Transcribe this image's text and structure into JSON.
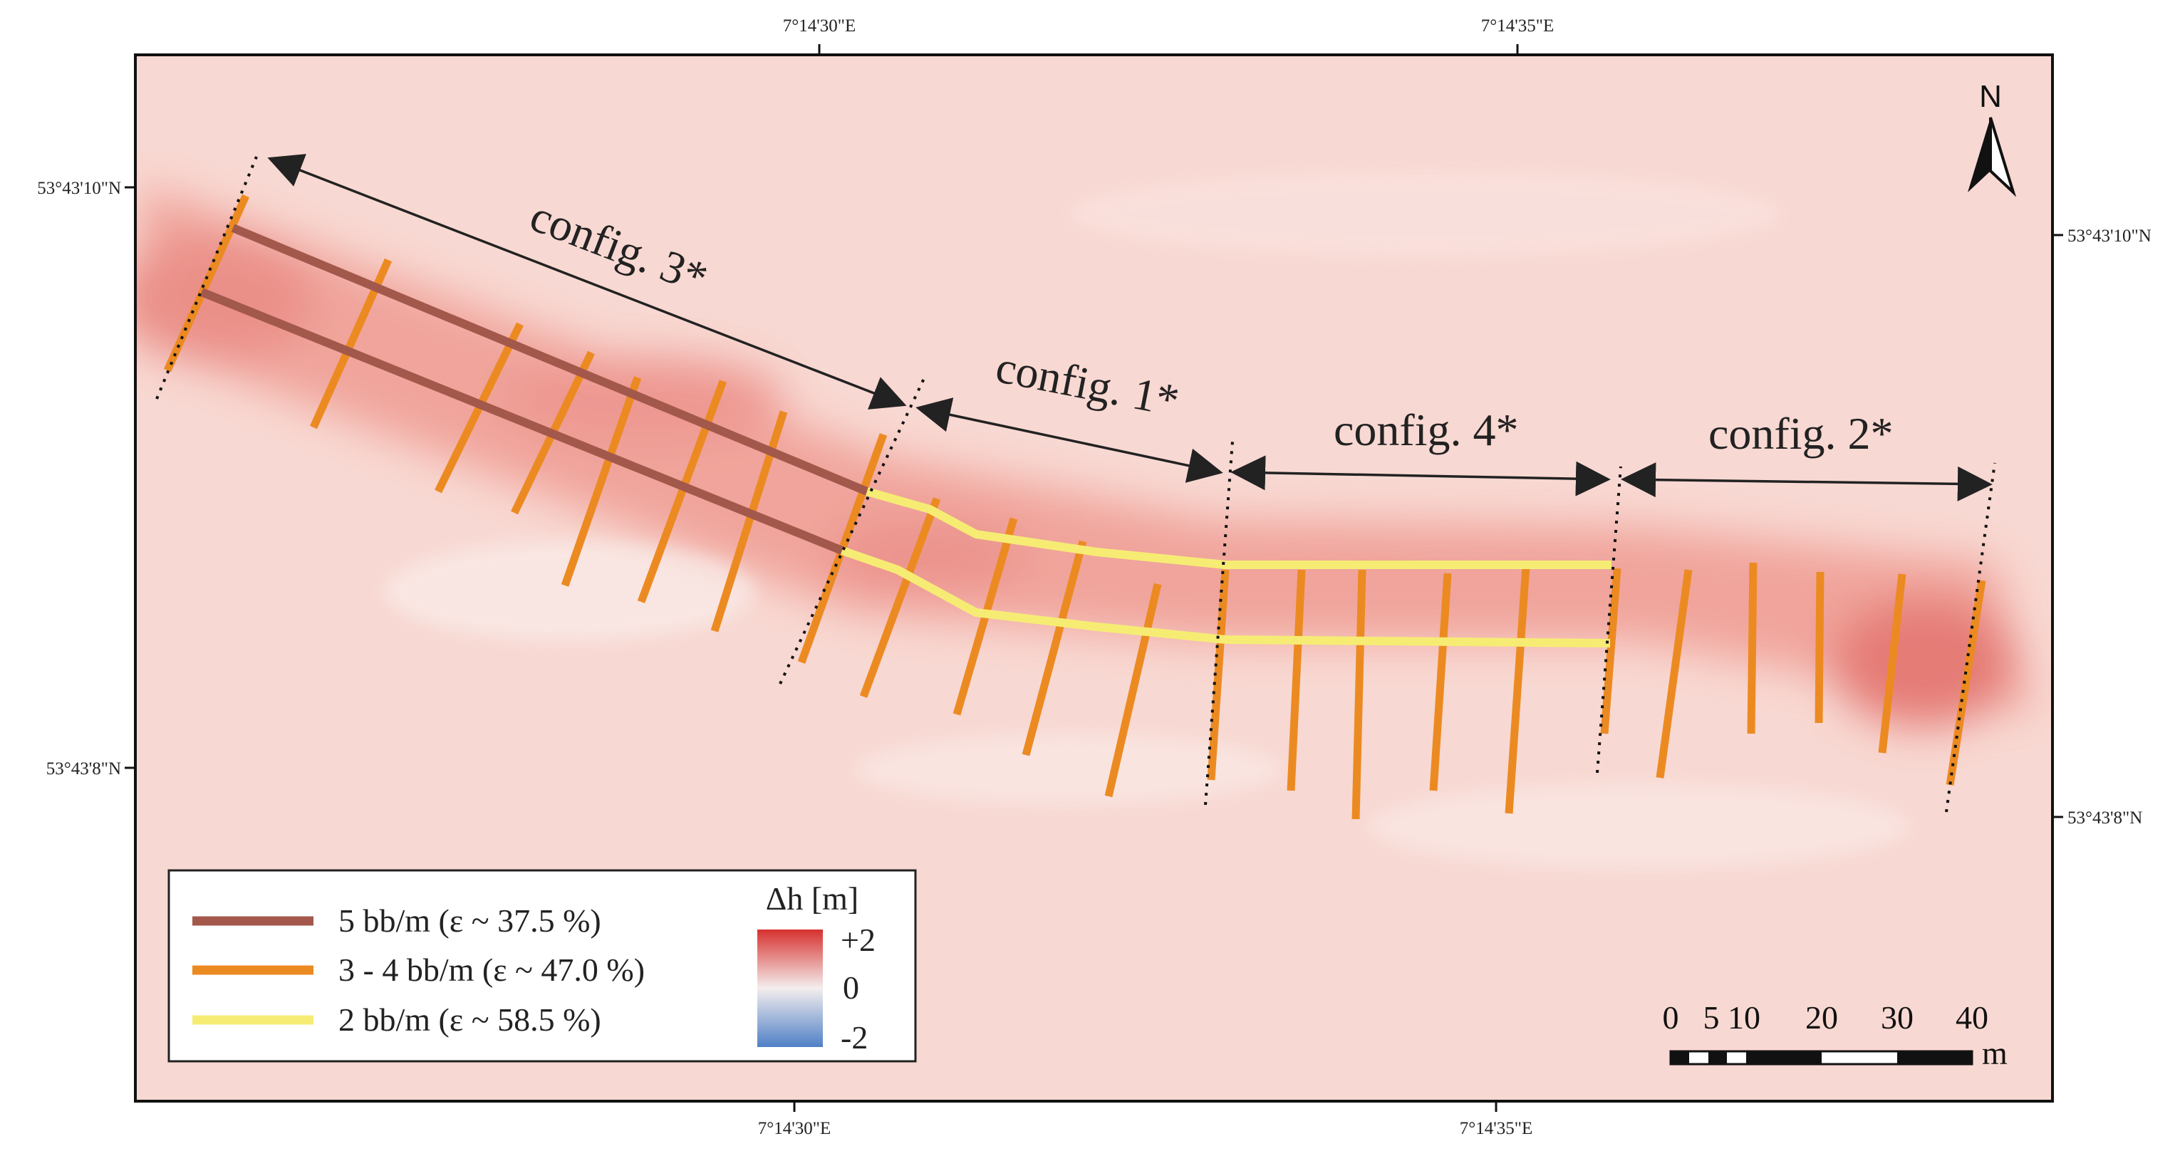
{
  "coords": {
    "top": [
      "7°14'30\"E",
      "7°14'35\"E"
    ],
    "bottom": [
      "7°14'30\"E",
      "7°14'35\"E"
    ],
    "left": [
      "53°43'10\"N",
      "53°43'8\"N"
    ],
    "right": [
      "53°43'10\"N",
      "53°43'8\"N"
    ]
  },
  "configs": [
    "config. 3*",
    "config. 1*",
    "config. 4*",
    "config. 2*"
  ],
  "north_label": "N",
  "legend": {
    "items": [
      {
        "label": "5 bb/m (ε ~ 37.5 %)",
        "color": "#a3584c"
      },
      {
        "label": "3 - 4 bb/m (ε ~ 47.0 %)",
        "color": "#ec8a22"
      },
      {
        "label": "2 bb/m (ε ~ 58.5 %)",
        "color": "#f6ec74"
      }
    ],
    "colorbar": {
      "title": "Δh [m]",
      "max_label": "+2",
      "mid_label": "0",
      "min_label": "-2",
      "max_color": "#d6312e",
      "mid_color": "#f4eeee",
      "min_color": "#4f80c6"
    }
  },
  "scale_bar": {
    "ticks": [
      "0",
      "5",
      "10",
      "20",
      "30",
      "40"
    ],
    "unit": "m"
  },
  "colors": {
    "background": "#f8d8d2",
    "erosion": "#ef8c84",
    "frame": "#111111"
  }
}
